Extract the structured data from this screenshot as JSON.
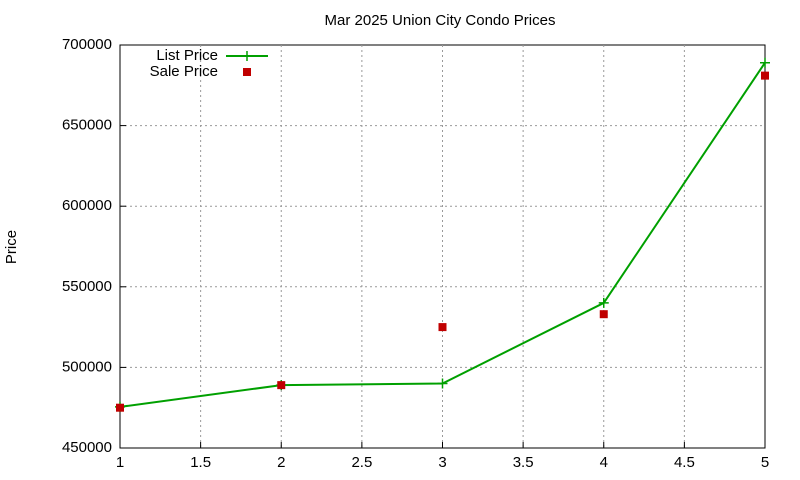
{
  "chart_data": {
    "type": "line",
    "title": "Mar 2025 Union City Condo Prices",
    "y_label": "Price",
    "x": [
      1,
      2,
      3,
      4,
      5
    ],
    "series": [
      {
        "name": "List Price",
        "color": "#00a000",
        "style": "line-points",
        "values": [
          475500,
          489000,
          490000,
          540000,
          689000
        ]
      },
      {
        "name": "Sale Price",
        "color": "#c00000",
        "style": "points",
        "values": [
          475000,
          489000,
          525000,
          533000,
          681000
        ]
      }
    ],
    "xlim": [
      1,
      5
    ],
    "xticks": [
      1,
      1.5,
      2,
      2.5,
      3,
      3.5,
      4,
      4.5,
      5
    ],
    "ylim": [
      450000,
      700000
    ],
    "yticks": [
      450000,
      500000,
      550000,
      600000,
      650000,
      700000
    ],
    "grid": true,
    "legend": "top-left"
  }
}
